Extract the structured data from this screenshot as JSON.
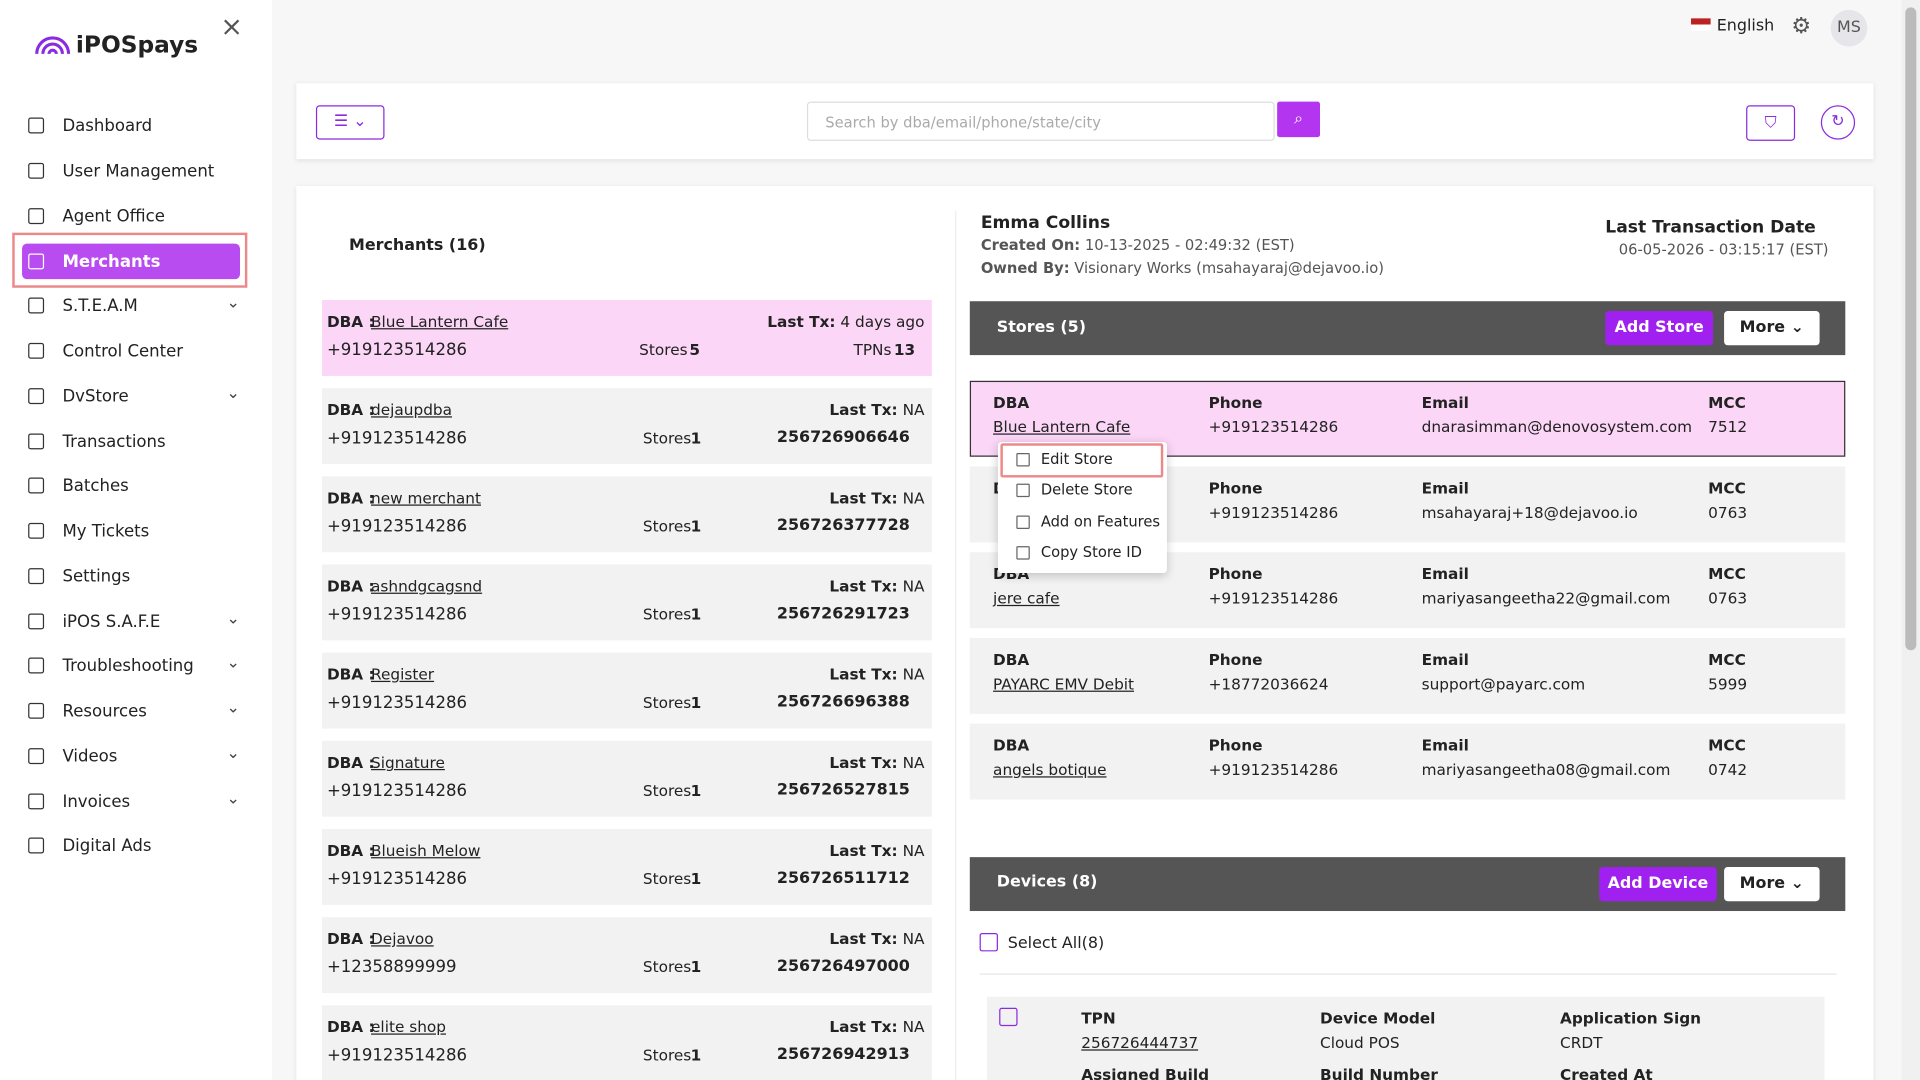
{
  "sidebar": {
    "logo": "iPOSpays",
    "items": [
      {
        "label": "Dashboard",
        "expandable": false
      },
      {
        "label": "User Management",
        "expandable": false
      },
      {
        "label": "Agent Office",
        "expandable": false
      },
      {
        "label": "Merchants",
        "expandable": false,
        "active": true
      },
      {
        "label": "S.T.E.A.M",
        "expandable": true
      },
      {
        "label": "Control Center",
        "expandable": false
      },
      {
        "label": "DvStore",
        "expandable": true
      },
      {
        "label": "Transactions",
        "expandable": false
      },
      {
        "label": "Batches",
        "expandable": false
      },
      {
        "label": "My Tickets",
        "expandable": false
      },
      {
        "label": "Settings",
        "expandable": false
      },
      {
        "label": "iPOS S.A.F.E",
        "expandable": true
      },
      {
        "label": "Troubleshooting",
        "expandable": true
      },
      {
        "label": "Resources",
        "expandable": true
      },
      {
        "label": "Videos",
        "expandable": true
      },
      {
        "label": "Invoices",
        "expandable": true
      },
      {
        "label": "Digital Ads",
        "expandable": false
      }
    ]
  },
  "header": {
    "language": "English",
    "avatar": "MS"
  },
  "toolbar": {
    "search_placeholder": "Search by dba/email/phone/state/city"
  },
  "merchants": {
    "title": "Merchants (16)",
    "dba_label": "DBA :",
    "last_tx_label": "Last Tx:",
    "stores_label": "Stores",
    "list": [
      {
        "dba": "Blue Lantern Cafe",
        "last_tx": "4 days ago",
        "phone": "+919123514286",
        "stores": "5",
        "tail_label": "TPNs",
        "tail": "13",
        "selected": true
      },
      {
        "dba": "dejaupdba",
        "last_tx": "NA",
        "phone": "+919123514286",
        "stores": "1",
        "tail": "256726906646"
      },
      {
        "dba": "new merchant",
        "last_tx": "NA",
        "phone": "+919123514286",
        "stores": "1",
        "tail": "256726377728"
      },
      {
        "dba": "ashndgcagsnd",
        "last_tx": "NA",
        "phone": "+919123514286",
        "stores": "1",
        "tail": "256726291723"
      },
      {
        "dba": "Register",
        "last_tx": "NA",
        "phone": "+919123514286",
        "stores": "1",
        "tail": "256726696388"
      },
      {
        "dba": "Signature",
        "last_tx": "NA",
        "phone": "+919123514286",
        "stores": "1",
        "tail": "256726527815"
      },
      {
        "dba": "Blueish Melow",
        "last_tx": "NA",
        "phone": "+919123514286",
        "stores": "1",
        "tail": "256726511712"
      },
      {
        "dba": "Dejavoo",
        "last_tx": "NA",
        "phone": "+12358899999",
        "stores": "1",
        "tail": "256726497000"
      },
      {
        "dba": "elite shop",
        "last_tx": "NA",
        "phone": "+919123514286",
        "stores": "1",
        "tail": "256726942913"
      }
    ]
  },
  "detail": {
    "name": "Emma Collins",
    "created_label": "Created On:",
    "created": "10-13-2025 - 02:49:32 (EST)",
    "owned_label": "Owned By:",
    "owned": "Visionary Works (msahayaraj@dejavoo.io)",
    "last_tx_title": "Last Transaction Date",
    "last_tx": "06-05-2026 - 03:15:17 (EST)"
  },
  "stores": {
    "title": "Stores (5)",
    "add": "Add Store",
    "more": "More",
    "headers": [
      "DBA",
      "Phone",
      "Email",
      "MCC"
    ],
    "list": [
      {
        "dba": "Blue Lantern Cafe",
        "phone": "+919123514286",
        "email": "dnarasimman@denovosystem.com",
        "mcc": "7512",
        "selected": true
      },
      {
        "dba": null,
        "phone": "+919123514286",
        "email": "msahayaraj+18@dejavoo.io",
        "mcc": "0763"
      },
      {
        "dba": "jere cafe",
        "phone": "+919123514286",
        "email": "mariyasangeetha22@gmail.com",
        "mcc": "0763"
      },
      {
        "dba": "PAYARC EMV Debit",
        "phone": "+18772036624",
        "email": "support@payarc.com",
        "mcc": "5999"
      },
      {
        "dba": "angels botique",
        "phone": "+919123514286",
        "email": "mariyasangeetha08@gmail.com",
        "mcc": "0742"
      }
    ],
    "menu": [
      "Edit Store",
      "Delete Store",
      "Add on Features",
      "Copy Store ID"
    ]
  },
  "devices": {
    "title": "Devices (8)",
    "add": "Add Device",
    "more": "More",
    "select_all": "Select All(8)",
    "headers": [
      "TPN",
      "Device Model",
      "Application Sign",
      "Assigned Build",
      "Build Number",
      "Created At"
    ],
    "list": [
      {
        "tpn": "256726444737",
        "model": "Cloud POS",
        "sign": "CRDT"
      }
    ]
  }
}
